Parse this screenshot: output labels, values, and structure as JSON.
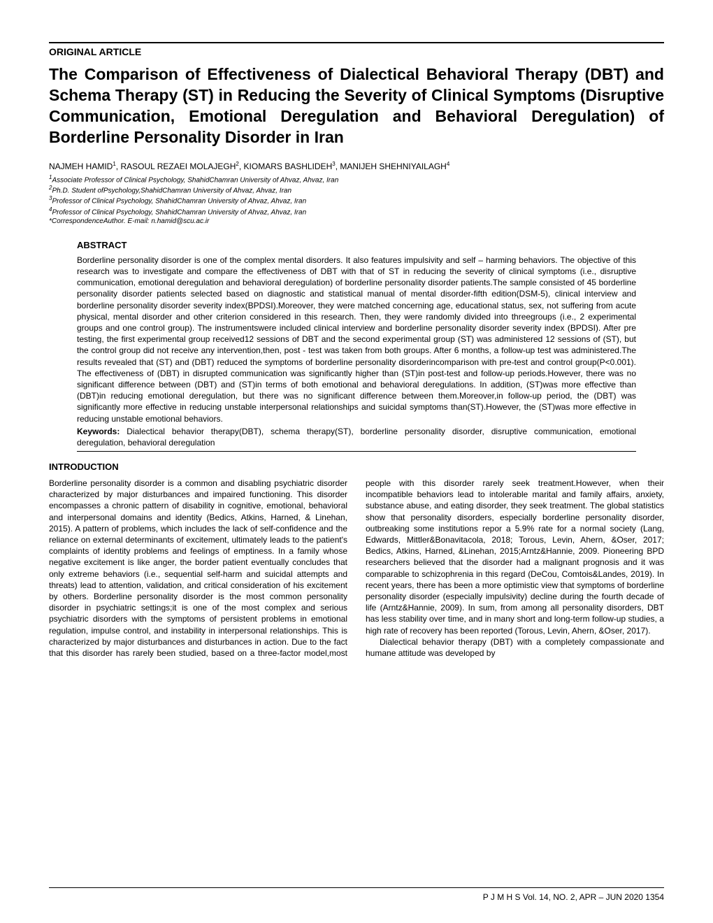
{
  "section_label": "ORIGINAL ARTICLE",
  "title": "The Comparison of Effectiveness of Dialectical Behavioral Therapy (DBT) and Schema Therapy (ST) in Reducing the Severity of Clinical Symptoms (Disruptive Communication, Emotional Deregulation and Behavioral Deregulation) of Borderline Personality Disorder in Iran",
  "authors": {
    "a1": "NAJMEH HAMID",
    "a2": "RASOUL REZAEI MOLAJEGH",
    "a3": "KIOMARS BASHLIDEH",
    "a4": "MANIJEH SHEHNIYAILAGH"
  },
  "affiliations": {
    "aff1": "Associate Professor of Clinical Psychology, ShahidChamran University of Ahvaz, Ahvaz, Iran",
    "aff2": "Ph.D. Student ofPsychology,ShahidChamran University of Ahvaz, Ahvaz, Iran",
    "aff3": "Professor of Clinical Psychology, ShahidChamran University of Ahvaz, Ahvaz, Iran",
    "aff4": "Professor of Clinical Psychology, ShahidChamran University of Ahvaz, Ahvaz, Iran",
    "corr": "*CorrespondenceAuthor. E-mail: n.hamid@scu.ac.ir"
  },
  "abstract": {
    "heading": "ABSTRACT",
    "body": "Borderline personality disorder is one of the complex mental disorders. It also features impulsivity and self – harming behaviors. The objective of this research was to investigate and compare the effectiveness of DBT with that of ST in reducing the severity of clinical symptoms (i.e., disruptive communication, emotional deregulation and behavioral deregulation) of borderline personality disorder patients.The sample consisted of 45 borderline personality disorder patients selected based on diagnostic and statistical manual of mental disorder-fifth edition(DSM-5), clinical interview and borderline personality disorder severity index(BPDSI).Moreover, they were matched concerning age, educational status, sex, not suffering from acute physical, mental disorder and other criterion considered in this research. Then, they were randomly divided into threegroups (i.e., 2 experimental groups and one control group). The instrumentswere included clinical interview and borderline personality disorder severity index (BPDSI). After pre testing, the first experimental group received12 sessions of DBT and the second experimental group (ST) was administered 12 sessions of (ST), but the control group did not receive any intervention,then, post - test was taken from both groups. After 6 months, a follow-up test was administered.The results revealed that (ST) and (DBT) reduced the symptoms of borderline personality disorderincomparison with pre-test and control group(P<0.001). The effectiveness of (DBT) in disrupted communication was significantly higher than (ST)in post-test and follow-up periods.However, there was no significant difference between (DBT) and (ST)in terms of both emotional and behavioral deregulations. In addition, (ST)was more effective than (DBT)in reducing emotional deregulation, but there was no significant difference between them.Moreover,in follow-up period, the (DBT) was significantly more effective in reducing unstable interpersonal relationships and suicidal symptoms than(ST).However, the (ST)was more effective in reducing unstable emotional behaviors.",
    "keywords_label": "Keywords:",
    "keywords": " Dialectical behavior therapy(DBT), schema therapy(ST), borderline personality disorder, disruptive communication, emotional deregulation, behavioral deregulation"
  },
  "intro": {
    "heading": "INTRODUCTION",
    "p1": "Borderline personality disorder is a common and disabling psychiatric disorder characterized by major disturbances and impaired functioning. This disorder encompasses a chronic pattern of disability in cognitive, emotional, behavioral and interpersonal domains and identity (Bedics, Atkins, Harned, & Linehan, 2015). A pattern of problems, which includes the lack of self-confidence and the reliance on external determinants of excitement, ultimately leads to the patient's complaints of identity problems and feelings of emptiness. In a family whose negative excitement is like anger, the border patient eventually concludes that only extreme behaviors (i.e., sequential self-harm and suicidal attempts and threats) lead to attention, validation, and critical consideration of his excitement by others. Borderline personality disorder is the most common personality disorder in psychiatric settings;it is one of the most complex and serious psychiatric disorders with the symptoms of persistent problems in emotional regulation, impulse control, and instability in interpersonal relationships. This is characterized by major disturbances and disturbances in action. Due to the fact that this disorder has rarely been studied, based on a three-factor model,most people with this disorder rarely seek treatment.However, when their incompatible behaviors lead to intolerable marital and family affairs, anxiety, substance abuse, and eating disorder, they seek treatment. The global statistics show that personality disorders, especially borderline personality disorder, outbreaking some institutions repor a 5.9% rate for a normal society (Lang, Edwards, Mittler&Bonavitacola, 2018; Torous, Levin, Ahern, &Oser, 2017; Bedics, Atkins, Harned, &Linehan, 2015;Arntz&Hannie, 2009. Pioneering BPD researchers believed that the disorder had a malignant prognosis and it was comparable to schizophrenia in this regard (DeCou, Comtois&Landes, 2019). In recent years, there has been a more optimistic view that symptoms of borderline personality disorder (especially impulsivity) decline during the fourth decade of life (Arntz&Hannie, 2009). In sum, from among all personality disorders, DBT has less stability over time, and in many short and long-term follow-up studies, a high rate of recovery has been reported (Torous, Levin, Ahern, &Oser, 2017).",
    "p2": "Dialectical behavior therapy (DBT) with a completely compassionate and humane attitude was developed by"
  },
  "footer": "P J M H S  Vol. 14, NO. 2, APR – JUN  2020   1354"
}
